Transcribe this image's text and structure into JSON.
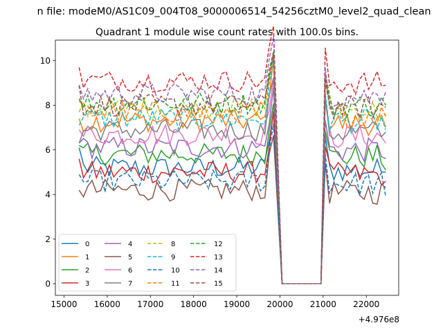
{
  "header_title": "n file: modeM0/AS1C09_004T08_9000006514_54256cztM0_level2_quad_clean",
  "chart_data": {
    "type": "line",
    "title": "Quadrant 1 module wise count rates with 100.0s bins.",
    "xlabel": "",
    "ylabel": "",
    "x_offset_label": "+4.976e8",
    "xlim": [
      14800,
      22750
    ],
    "ylim": [
      -0.52,
      10.92
    ],
    "x_ticks": [
      15000,
      16000,
      17000,
      18000,
      19000,
      20000,
      21000,
      22000
    ],
    "x_tick_labels": [
      "15000",
      "16000",
      "17000",
      "18000",
      "19000",
      "20000",
      "21000",
      "22000"
    ],
    "y_ticks": [
      0,
      2,
      4,
      6,
      8,
      10
    ],
    "y_tick_labels": [
      "0",
      "2",
      "4",
      "6",
      "8",
      "10"
    ],
    "grid": false,
    "legend_position": "lower-left",
    "legend_columns": 4,
    "series": [
      {
        "name": "0",
        "color": "#1f77b4",
        "dash": "solid",
        "base": 5.2,
        "start": 6.1,
        "end": 5.0
      },
      {
        "name": "1",
        "color": "#ff7f0e",
        "dash": "solid",
        "base": 7.3,
        "start": 7.4,
        "end": 7.0
      },
      {
        "name": "2",
        "color": "#2ca02c",
        "dash": "solid",
        "base": 5.8,
        "start": 6.2,
        "end": 5.1
      },
      {
        "name": "3",
        "color": "#d62728",
        "dash": "solid",
        "base": 5.0,
        "start": 5.6,
        "end": 4.6
      },
      {
        "name": "4",
        "color": "#9467bd",
        "dash": "solid",
        "base": 6.1,
        "start": 6.3,
        "end": 5.6
      },
      {
        "name": "5",
        "color": "#8c564b",
        "dash": "solid",
        "base": 4.2,
        "start": 4.2,
        "end": 4.3
      },
      {
        "name": "6",
        "color": "#e377c2",
        "dash": "solid",
        "base": 6.7,
        "start": 6.9,
        "end": 6.3
      },
      {
        "name": "7",
        "color": "#7f7f7f",
        "dash": "solid",
        "base": 6.9,
        "start": 6.3,
        "end": 6.8
      },
      {
        "name": "8",
        "color": "#bcbd22",
        "dash": "dashed",
        "base": 7.9,
        "start": 7.7,
        "end": 7.6
      },
      {
        "name": "9",
        "color": "#17becf",
        "dash": "dashed",
        "base": 7.4,
        "start": 7.1,
        "end": 6.9
      },
      {
        "name": "10",
        "color": "#1f77b4",
        "dash": "dashed",
        "base": 4.6,
        "start": 4.9,
        "end": 3.9
      },
      {
        "name": "11",
        "color": "#ff7f0e",
        "dash": "dashed",
        "base": 7.7,
        "start": 8.2,
        "end": 7.5
      },
      {
        "name": "12",
        "color": "#2ca02c",
        "dash": "dashed",
        "base": 8.1,
        "start": 8.3,
        "end": 8.0
      },
      {
        "name": "13",
        "color": "#d62728",
        "dash": "dashed",
        "base": 9.1,
        "start": 9.7,
        "end": 8.9
      },
      {
        "name": "14",
        "color": "#9467bd",
        "dash": "dashed",
        "base": 8.5,
        "start": 8.9,
        "end": 8.6
      },
      {
        "name": "15",
        "color": "#8c564b",
        "dash": "dashed",
        "base": 8.0,
        "start": 8.9,
        "end": 7.9
      }
    ],
    "x_sampling": {
      "seg1_start": 15350,
      "seg1_end": 19850,
      "gap_start": 20050,
      "gap_end": 20950,
      "seg2_start": 21050,
      "seg2_end": 22450,
      "step": 100
    }
  }
}
